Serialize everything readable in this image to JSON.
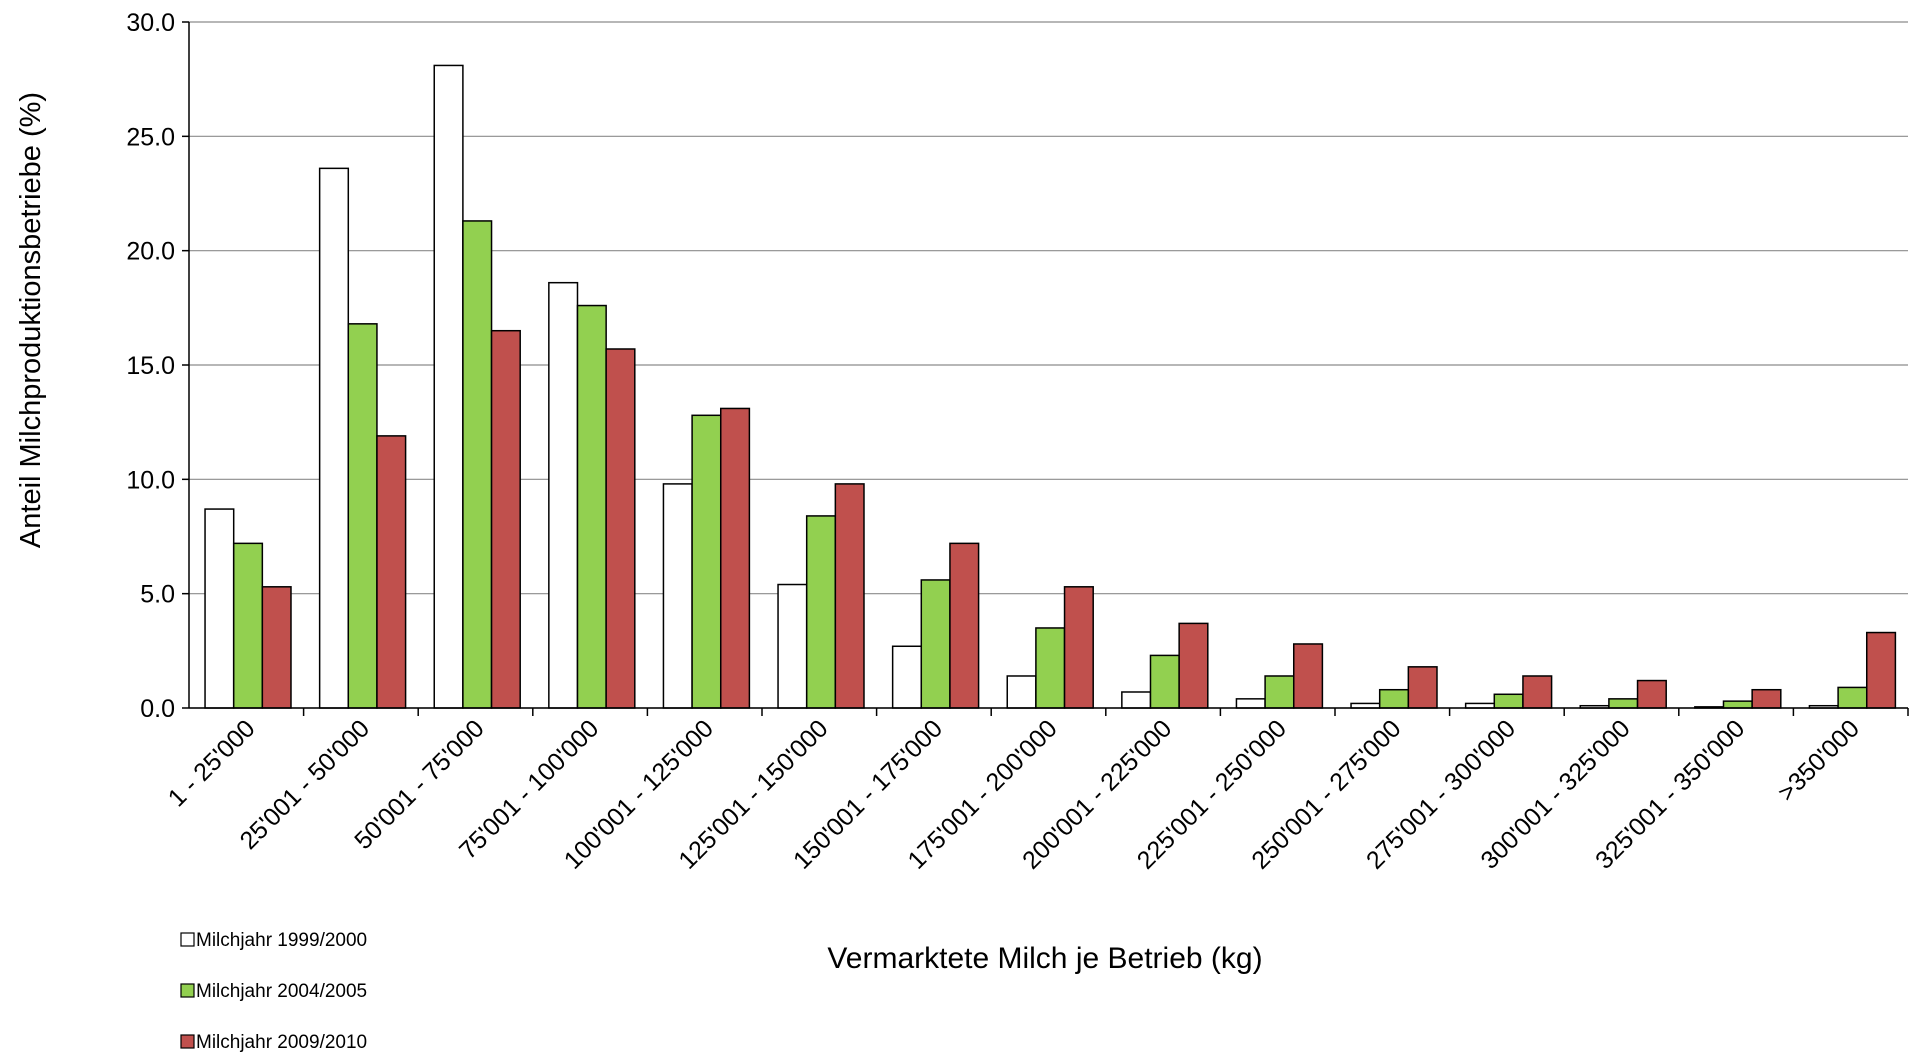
{
  "chart_data": {
    "type": "bar",
    "y_label": "Anteil Milchproduktionsbetriebe (%)",
    "x_label": "Vermarktete Milch je Betrieb (kg)",
    "categories": [
      "1 - 25'000",
      "25'001 - 50'000",
      "50'001 - 75'000",
      "75'001 - 100'000",
      "100'001 - 125'000",
      "125'001 - 150'000",
      "150'001 - 175'000",
      "175'001 - 200'000",
      "200'001 - 225'000",
      "225'001 - 250'000",
      "250'001 - 275'000",
      "275'001 - 300'000",
      "300'001 - 325'000",
      "325'001 - 350'000",
      ">350'000"
    ],
    "series": [
      {
        "name": "Milchjahr 1999/2000",
        "color": "#ffffff",
        "values": [
          8.7,
          23.6,
          28.1,
          18.6,
          9.8,
          5.4,
          2.7,
          1.4,
          0.7,
          0.4,
          0.2,
          0.2,
          0.1,
          0.05,
          0.1
        ]
      },
      {
        "name": "Milchjahr 2004/2005",
        "color": "#92d050",
        "values": [
          7.2,
          16.8,
          21.3,
          17.6,
          12.8,
          8.4,
          5.6,
          3.5,
          2.3,
          1.4,
          0.8,
          0.6,
          0.4,
          0.3,
          0.9
        ]
      },
      {
        "name": "Milchjahr 2009/2010",
        "color": "#c0504d",
        "values": [
          5.3,
          11.9,
          16.5,
          15.7,
          13.1,
          9.8,
          7.2,
          5.3,
          3.7,
          2.8,
          1.8,
          1.4,
          1.2,
          0.8,
          3.3
        ]
      }
    ],
    "ylim": [
      0,
      30
    ],
    "yticks": [
      {
        "value": 0,
        "label": "0.0"
      },
      {
        "value": 5,
        "label": "5.0"
      },
      {
        "value": 10,
        "label": "10.0"
      },
      {
        "value": 15,
        "label": "15.0"
      },
      {
        "value": 20,
        "label": "20.0"
      },
      {
        "value": 25,
        "label": "25.0"
      },
      {
        "value": 30,
        "label": "30.0"
      }
    ],
    "grid": true,
    "legend": "bottom-left"
  }
}
